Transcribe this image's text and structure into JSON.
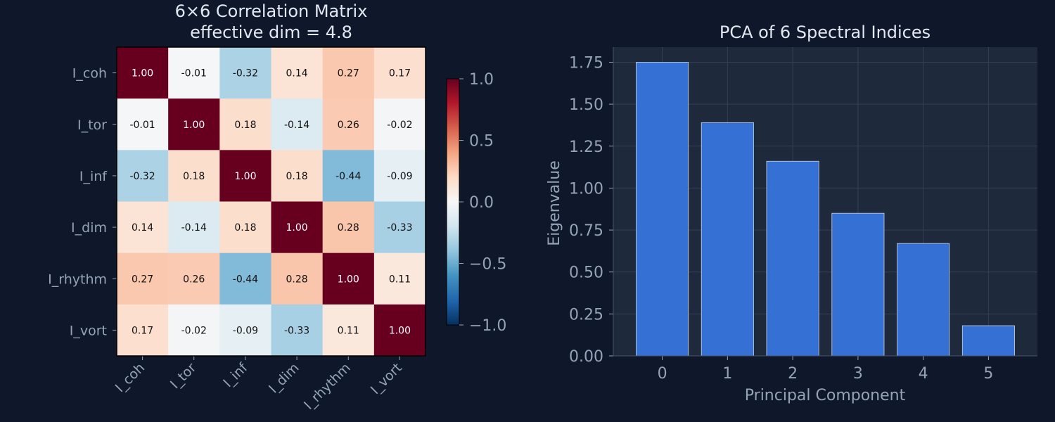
{
  "colors": {
    "background": "#0f172a",
    "panel_bg": "#1e293b",
    "text_light": "#e2e8f0",
    "text_muted": "#94a3b8",
    "bar_fill": "#3570d4",
    "bar_edge": "#cbd5e1",
    "grid": "#334155",
    "colormap": "RdBu_r"
  },
  "chart_data": [
    {
      "type": "heatmap",
      "title": "6×6 Correlation Matrix",
      "subtitle": "effective dim = 4.8",
      "row_labels": [
        "I_coh",
        "I_tor",
        "I_inf",
        "I_dim",
        "I_rhythm",
        "I_vort"
      ],
      "col_labels": [
        "I_coh",
        "I_tor",
        "I_inf",
        "I_dim",
        "I_rhythm",
        "I_vort"
      ],
      "values": [
        [
          1.0,
          -0.01,
          -0.32,
          0.14,
          0.27,
          0.17
        ],
        [
          -0.01,
          1.0,
          0.18,
          -0.14,
          0.26,
          -0.02
        ],
        [
          -0.32,
          0.18,
          1.0,
          0.18,
          -0.44,
          -0.09
        ],
        [
          0.14,
          -0.14,
          0.18,
          1.0,
          0.28,
          -0.33
        ],
        [
          0.27,
          0.26,
          -0.44,
          0.28,
          1.0,
          0.11
        ],
        [
          0.17,
          -0.02,
          -0.09,
          -0.33,
          0.11,
          1.0
        ]
      ],
      "vmin": -1.0,
      "vmax": 1.0,
      "colorbar_ticks": [
        1.0,
        0.5,
        0.0,
        -0.5,
        -1.0
      ],
      "colorbar_tick_labels": [
        "1.0",
        "0.5",
        "0.0",
        "−0.5",
        "−1.0"
      ]
    },
    {
      "type": "bar",
      "title": "PCA of 6 Spectral Indices",
      "xlabel": "Principal Component",
      "ylabel": "Eigenvalue",
      "categories": [
        "0",
        "1",
        "2",
        "3",
        "4",
        "5"
      ],
      "values": [
        1.75,
        1.39,
        1.16,
        0.85,
        0.67,
        0.18
      ],
      "ylim": [
        0,
        1.84
      ],
      "yticks": [
        0.0,
        0.25,
        0.5,
        0.75,
        1.0,
        1.25,
        1.5,
        1.75
      ],
      "ytick_labels": [
        "0.00",
        "0.25",
        "0.50",
        "0.75",
        "1.00",
        "1.25",
        "1.50",
        "1.75"
      ],
      "grid": true
    }
  ]
}
